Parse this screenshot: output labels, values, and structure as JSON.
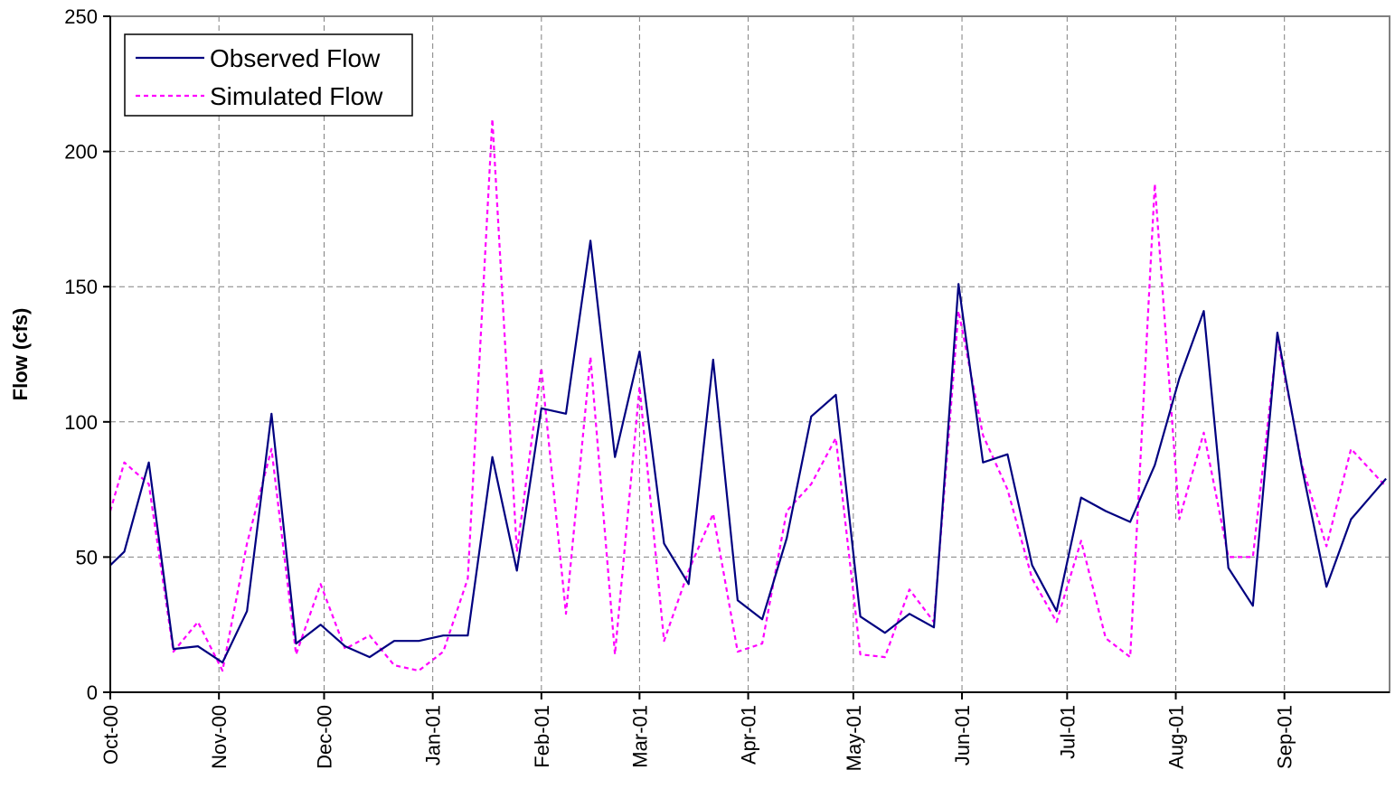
{
  "chart_data": {
    "type": "line",
    "ylabel": "Flow (cfs)",
    "xlabel": "",
    "ylim": [
      0,
      250
    ],
    "yticks": [
      0,
      50,
      100,
      150,
      200,
      250
    ],
    "x_axis": {
      "type": "date",
      "start": "2000-10-01",
      "end": "2001-09-30",
      "tick_labels": [
        "Oct-00",
        "Nov-00",
        "Dec-00",
        "Jan-01",
        "Feb-01",
        "Mar-01",
        "Apr-01",
        "May-01",
        "Jun-01",
        "Jul-01",
        "Aug-01",
        "Sep-01"
      ],
      "tick_dates": [
        "2000-10-01",
        "2000-11-01",
        "2000-12-01",
        "2001-01-01",
        "2001-02-01",
        "2001-03-01",
        "2001-04-01",
        "2001-05-01",
        "2001-06-01",
        "2001-07-01",
        "2001-08-01",
        "2001-09-01"
      ]
    },
    "grid": true,
    "legend": {
      "position": "top-left"
    },
    "series": [
      {
        "name": "Observed Flow",
        "color": "#000080",
        "style": "solid",
        "points": [
          [
            "2000-10-01",
            47
          ],
          [
            "2000-10-05",
            52
          ],
          [
            "2000-10-12",
            85
          ],
          [
            "2000-10-19",
            16
          ],
          [
            "2000-10-26",
            17
          ],
          [
            "2000-11-02",
            11
          ],
          [
            "2000-11-09",
            30
          ],
          [
            "2000-11-16",
            103
          ],
          [
            "2000-11-23",
            18
          ],
          [
            "2000-11-30",
            25
          ],
          [
            "2000-12-07",
            17
          ],
          [
            "2000-12-14",
            13
          ],
          [
            "2000-12-21",
            19
          ],
          [
            "2000-12-28",
            19
          ],
          [
            "2001-01-04",
            21
          ],
          [
            "2001-01-11",
            21
          ],
          [
            "2001-01-18",
            87
          ],
          [
            "2001-01-25",
            45
          ],
          [
            "2001-02-01",
            105
          ],
          [
            "2001-02-08",
            103
          ],
          [
            "2001-02-15",
            167
          ],
          [
            "2001-02-22",
            87
          ],
          [
            "2001-03-01",
            126
          ],
          [
            "2001-03-08",
            55
          ],
          [
            "2001-03-15",
            40
          ],
          [
            "2001-03-22",
            123
          ],
          [
            "2001-03-29",
            34
          ],
          [
            "2001-04-05",
            27
          ],
          [
            "2001-04-12",
            57
          ],
          [
            "2001-04-19",
            102
          ],
          [
            "2001-04-26",
            110
          ],
          [
            "2001-05-03",
            28
          ],
          [
            "2001-05-10",
            22
          ],
          [
            "2001-05-17",
            29
          ],
          [
            "2001-05-24",
            24
          ],
          [
            "2001-05-31",
            151
          ],
          [
            "2001-06-07",
            85
          ],
          [
            "2001-06-14",
            88
          ],
          [
            "2001-06-21",
            47
          ],
          [
            "2001-06-28",
            30
          ],
          [
            "2001-07-05",
            72
          ],
          [
            "2001-07-12",
            67
          ],
          [
            "2001-07-19",
            63
          ],
          [
            "2001-07-26",
            84
          ],
          [
            "2001-08-02",
            116
          ],
          [
            "2001-08-09",
            141
          ],
          [
            "2001-08-16",
            46
          ],
          [
            "2001-08-23",
            32
          ],
          [
            "2001-08-30",
            133
          ],
          [
            "2001-09-06",
            83
          ],
          [
            "2001-09-13",
            39
          ],
          [
            "2001-09-20",
            64
          ],
          [
            "2001-09-30",
            79
          ]
        ]
      },
      {
        "name": "Simulated Flow",
        "color": "#ff00ff",
        "style": "dotted",
        "points": [
          [
            "2000-10-01",
            67
          ],
          [
            "2000-10-05",
            85
          ],
          [
            "2000-10-12",
            77
          ],
          [
            "2000-10-19",
            15
          ],
          [
            "2000-10-26",
            26
          ],
          [
            "2000-11-02",
            8
          ],
          [
            "2000-11-09",
            55
          ],
          [
            "2000-11-16",
            90
          ],
          [
            "2000-11-23",
            14
          ],
          [
            "2000-11-30",
            40
          ],
          [
            "2000-12-07",
            16
          ],
          [
            "2000-12-14",
            21
          ],
          [
            "2000-12-21",
            10
          ],
          [
            "2000-12-28",
            8
          ],
          [
            "2001-01-04",
            15
          ],
          [
            "2001-01-11",
            42
          ],
          [
            "2001-01-18",
            212
          ],
          [
            "2001-01-25",
            52
          ],
          [
            "2001-02-01",
            120
          ],
          [
            "2001-02-08",
            29
          ],
          [
            "2001-02-15",
            124
          ],
          [
            "2001-02-22",
            14
          ],
          [
            "2001-03-01",
            113
          ],
          [
            "2001-03-08",
            19
          ],
          [
            "2001-03-15",
            45
          ],
          [
            "2001-03-22",
            66
          ],
          [
            "2001-03-29",
            15
          ],
          [
            "2001-04-05",
            18
          ],
          [
            "2001-04-12",
            67
          ],
          [
            "2001-04-19",
            77
          ],
          [
            "2001-04-26",
            94
          ],
          [
            "2001-05-03",
            14
          ],
          [
            "2001-05-10",
            13
          ],
          [
            "2001-05-17",
            38
          ],
          [
            "2001-05-24",
            26
          ],
          [
            "2001-05-31",
            141
          ],
          [
            "2001-06-07",
            95
          ],
          [
            "2001-06-14",
            75
          ],
          [
            "2001-06-21",
            42
          ],
          [
            "2001-06-28",
            26
          ],
          [
            "2001-07-05",
            56
          ],
          [
            "2001-07-12",
            20
          ],
          [
            "2001-07-19",
            13
          ],
          [
            "2001-07-26",
            188
          ],
          [
            "2001-08-02",
            64
          ],
          [
            "2001-08-09",
            96
          ],
          [
            "2001-08-16",
            50
          ],
          [
            "2001-08-23",
            50
          ],
          [
            "2001-08-30",
            131
          ],
          [
            "2001-09-06",
            84
          ],
          [
            "2001-09-13",
            54
          ],
          [
            "2001-09-20",
            90
          ],
          [
            "2001-09-30",
            76
          ]
        ]
      }
    ]
  }
}
